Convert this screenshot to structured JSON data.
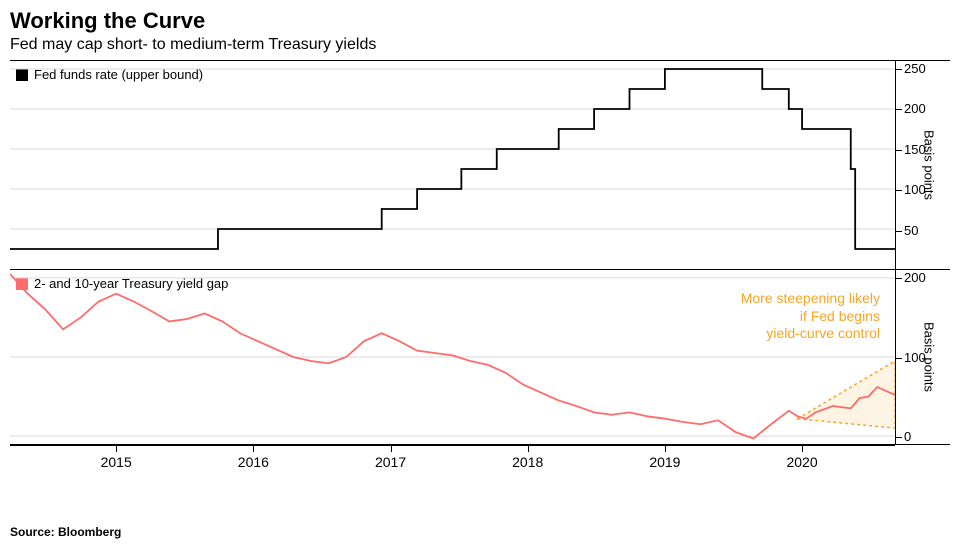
{
  "title": "Working the Curve",
  "subtitle": "Fed may cap short- to medium-term Treasury yields",
  "source": "Source: Bloomberg",
  "x_axis": {
    "labels": [
      "2015",
      "2016",
      "2017",
      "2018",
      "2019",
      "2020"
    ],
    "positions_pct": [
      12,
      27.5,
      43,
      58.5,
      74,
      89.5
    ]
  },
  "top_chart": {
    "legend": "Fed funds rate (upper bound)",
    "line_color": "#000000",
    "axis_title": "Basis points",
    "ylim": [
      0,
      260
    ],
    "yticks": [
      50,
      100,
      150,
      200,
      250
    ],
    "grid_color": "#d9d9d9",
    "data": [
      [
        0,
        25
      ],
      [
        23.5,
        25
      ],
      [
        23.5,
        50
      ],
      [
        42,
        50
      ],
      [
        42,
        75
      ],
      [
        46,
        75
      ],
      [
        46,
        100
      ],
      [
        51,
        100
      ],
      [
        51,
        125
      ],
      [
        55,
        125
      ],
      [
        55,
        150
      ],
      [
        62,
        150
      ],
      [
        62,
        175
      ],
      [
        66,
        175
      ],
      [
        66,
        200
      ],
      [
        70,
        200
      ],
      [
        70,
        225
      ],
      [
        74,
        225
      ],
      [
        74,
        250
      ],
      [
        85,
        250
      ],
      [
        85,
        225
      ],
      [
        88,
        225
      ],
      [
        88,
        200
      ],
      [
        89.5,
        200
      ],
      [
        89.5,
        175
      ],
      [
        95,
        175
      ],
      [
        95,
        125
      ],
      [
        95.5,
        125
      ],
      [
        95.5,
        25
      ],
      [
        100,
        25
      ]
    ]
  },
  "bottom_chart": {
    "legend": "2- and 10-year Treasury yield gap",
    "line_color": "#ff6b6b",
    "axis_title": "Basis points",
    "ylim": [
      -10,
      210
    ],
    "yticks": [
      0,
      100,
      200
    ],
    "grid_color": "#d9d9d9",
    "data": [
      [
        0,
        205
      ],
      [
        2,
        180
      ],
      [
        4,
        160
      ],
      [
        6,
        135
      ],
      [
        8,
        150
      ],
      [
        10,
        170
      ],
      [
        12,
        180
      ],
      [
        14,
        170
      ],
      [
        16,
        158
      ],
      [
        18,
        145
      ],
      [
        20,
        148
      ],
      [
        22,
        155
      ],
      [
        24,
        145
      ],
      [
        26,
        130
      ],
      [
        28,
        120
      ],
      [
        30,
        110
      ],
      [
        32,
        100
      ],
      [
        34,
        95
      ],
      [
        36,
        92
      ],
      [
        38,
        100
      ],
      [
        40,
        120
      ],
      [
        42,
        130
      ],
      [
        44,
        120
      ],
      [
        46,
        108
      ],
      [
        48,
        105
      ],
      [
        50,
        102
      ],
      [
        52,
        95
      ],
      [
        54,
        90
      ],
      [
        56,
        80
      ],
      [
        58,
        65
      ],
      [
        60,
        55
      ],
      [
        62,
        45
      ],
      [
        64,
        38
      ],
      [
        66,
        30
      ],
      [
        68,
        27
      ],
      [
        70,
        30
      ],
      [
        72,
        25
      ],
      [
        74,
        22
      ],
      [
        76,
        18
      ],
      [
        78,
        15
      ],
      [
        80,
        20
      ],
      [
        82,
        5
      ],
      [
        84,
        -3
      ],
      [
        86,
        15
      ],
      [
        88,
        32
      ],
      [
        89,
        25
      ],
      [
        90,
        22
      ],
      [
        91,
        30
      ],
      [
        93,
        38
      ],
      [
        95,
        35
      ],
      [
        96,
        48
      ],
      [
        97,
        50
      ],
      [
        98,
        62
      ],
      [
        100,
        52
      ]
    ],
    "annotation": {
      "text_lines": [
        "More steepening likely",
        "if Fed begins",
        "yield-curve control"
      ],
      "color": "#f5a623",
      "fan": {
        "points": [
          [
            89,
            22
          ],
          [
            100,
            95
          ],
          [
            100,
            10
          ],
          [
            89,
            22
          ]
        ],
        "stroke": "#f5a623",
        "dash": "3,3",
        "fill": "#f5a623",
        "fill_opacity": 0.12
      }
    }
  }
}
